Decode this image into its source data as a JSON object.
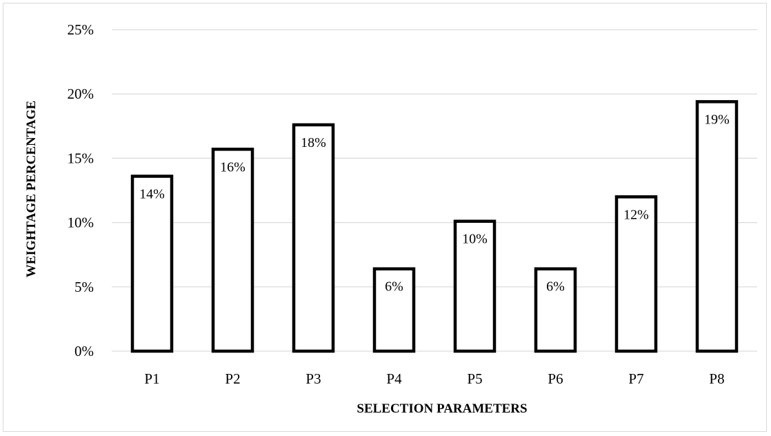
{
  "chart_data": {
    "type": "bar",
    "title": "",
    "xlabel": "SELECTION PARAMETERS",
    "ylabel": "WEIGHTAGE PERCENTAGE",
    "categories": [
      "P1",
      "P2",
      "P3",
      "P4",
      "P5",
      "P6",
      "P7",
      "P8"
    ],
    "values": [
      13.6,
      15.7,
      17.6,
      6.4,
      10.1,
      6.4,
      12.0,
      19.4
    ],
    "data_labels": [
      "14%",
      "16%",
      "18%",
      "6%",
      "10%",
      "6%",
      "12%",
      "19%"
    ],
    "ylim": [
      0,
      25
    ],
    "y_ticks": [
      0,
      5,
      10,
      15,
      20,
      25
    ],
    "y_tick_labels": [
      "0%",
      "5%",
      "10%",
      "15%",
      "20%",
      "25%"
    ],
    "grid": true,
    "legend": "none",
    "colors": {
      "bar_fill": "#ffffff",
      "bar_stroke": "#000000",
      "grid": "#d9d9d9",
      "text": "#000000"
    }
  }
}
